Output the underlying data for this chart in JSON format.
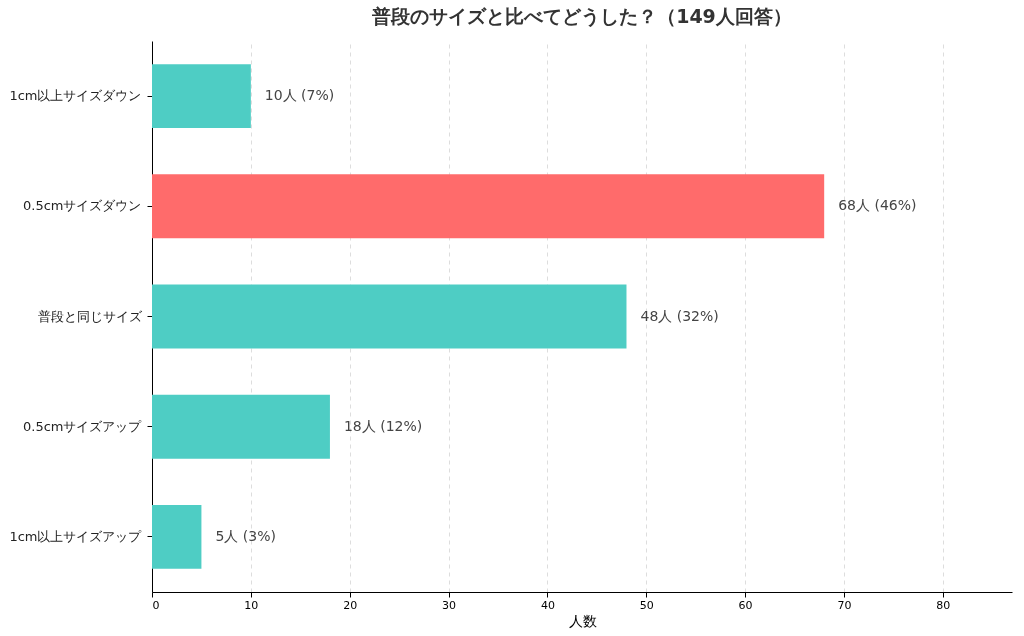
{
  "chart_data": {
    "type": "bar",
    "orientation": "horizontal",
    "title": "普段のサイズと比べてどうした？（149人回答）",
    "xlabel": "人数",
    "categories": [
      "1cm以上サイズダウン",
      "0.5cmサイズダウン",
      "普段と同じサイズ",
      "0.5cmサイズアップ",
      "1cm以上サイズアップ"
    ],
    "values": [
      10,
      68,
      48,
      18,
      5
    ],
    "colors": [
      "#4ecdc4",
      "#ff6b6b",
      "#4ecdc4",
      "#4ecdc4",
      "#4ecdc4"
    ],
    "value_labels": [
      "10人 (7%)",
      "68人 (46%)",
      "48人 (32%)",
      "18人 (12%)",
      "5人 (3%)"
    ],
    "xlim": [
      0,
      87
    ],
    "xticks": [
      0,
      10,
      20,
      30,
      40,
      50,
      60,
      70,
      80
    ],
    "grid": "x"
  }
}
